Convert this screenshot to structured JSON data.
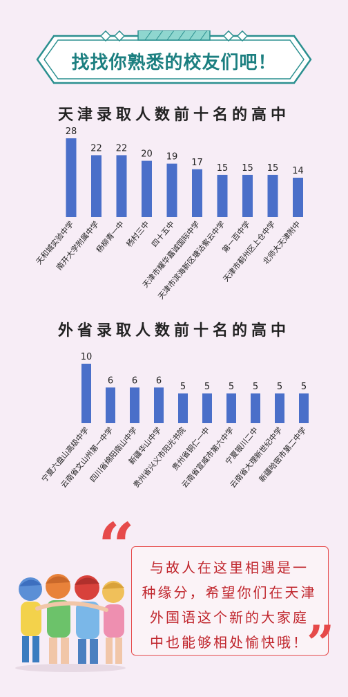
{
  "banner": {
    "title": "找找你熟悉的校友们吧！"
  },
  "charts": [
    {
      "title": "天津录取人数前十名的高中"
    },
    {
      "title": "外省录取人数前十名的高中"
    }
  ],
  "chart_data": [
    {
      "type": "bar",
      "title": "天津录取人数前十名的高中",
      "categories": [
        "天和城实验中学",
        "南开大学附属中学",
        "杨柳青一中",
        "杨村三中",
        "四十五中",
        "天津市耀华嘉诚国际中学",
        "天津市滨海新区塘沽紫云中学",
        "第一百中学",
        "天津市蓟州区上仓中学",
        "北师大天津附中"
      ],
      "values": [
        28,
        22,
        22,
        20,
        19,
        17,
        15,
        15,
        15,
        14
      ],
      "bar_color": "#4a6fc9"
    },
    {
      "type": "bar",
      "title": "外省录取人数前十名的高中",
      "categories": [
        "宁夏六盘山高级中学",
        "云南省文山州第一中学",
        "四川省绵阳南山中学",
        "新疆华山中学",
        "贵州省兴义市阳光书院",
        "贵州省铜仁一中",
        "云南省宣威市第六中学",
        "宁夏银川二中",
        "云南省大理新世纪中学",
        "新疆哈密市第二中学"
      ],
      "values": [
        10,
        6,
        6,
        6,
        5,
        5,
        5,
        5,
        5,
        5
      ],
      "bar_color": "#4a6fc9"
    }
  ],
  "quote": {
    "open_mark": "“",
    "close_mark": "”",
    "lines": [
      "与故人在这里相遇是一",
      "种缘分，希望你们在天津",
      "外国语这个新的大家庭",
      "中也能够相处愉快哦！"
    ]
  },
  "colors": {
    "accent": "#1c7f80",
    "banner_border": "#2a8f8f",
    "quote_red": "#e64a4a",
    "background": "#f7edf6"
  }
}
